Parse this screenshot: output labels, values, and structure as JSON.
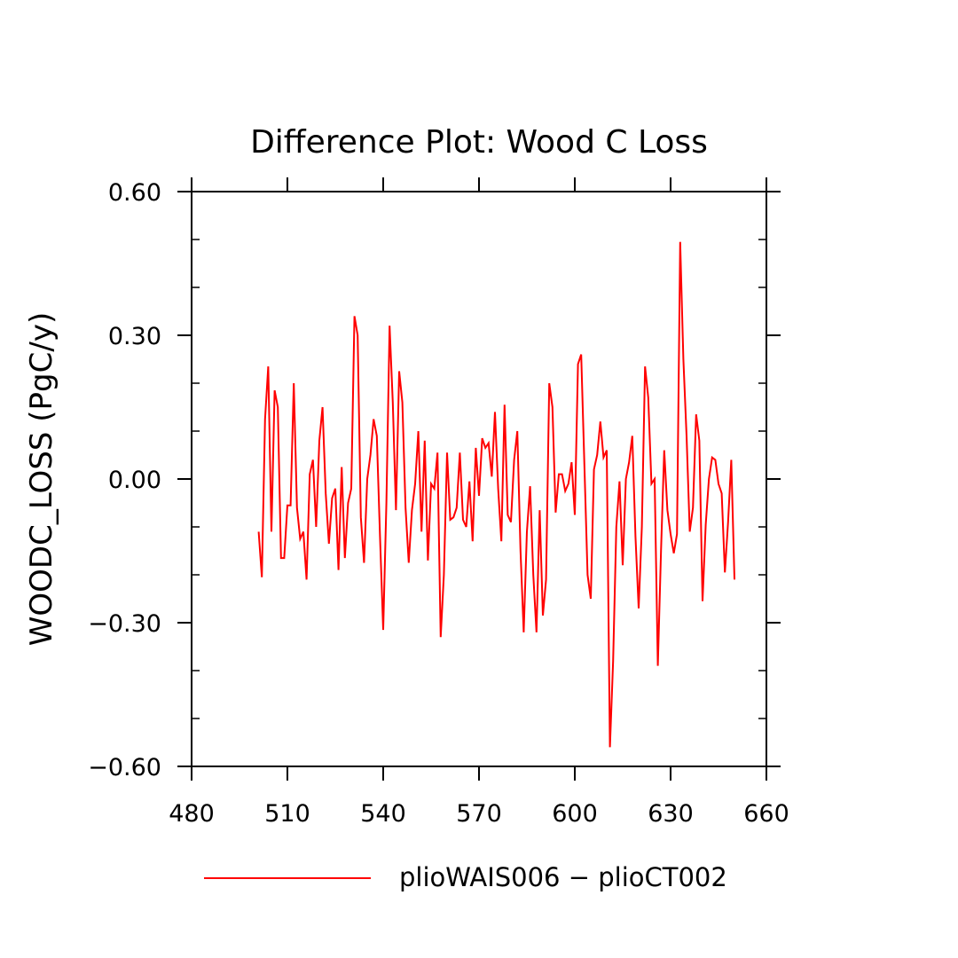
{
  "chart_data": {
    "type": "line",
    "title": "Difference Plot: Wood C Loss",
    "xlabel": "",
    "ylabel": "WOODC_LOSS  (PgC/y)",
    "xlim": [
      480,
      660
    ],
    "ylim": [
      -0.6,
      0.6
    ],
    "x_ticks": [
      480,
      510,
      540,
      570,
      600,
      630,
      660
    ],
    "x_tick_labels": [
      "480",
      "510",
      "540",
      "570",
      "600",
      "630",
      "660"
    ],
    "y_ticks": [
      0.6,
      0.3,
      0.0,
      -0.3,
      -0.6
    ],
    "y_tick_labels": [
      "0.60",
      "0.30",
      "0.00",
      "−0.30",
      "−0.60"
    ],
    "grid": false,
    "legend_position": "bottom",
    "series": [
      {
        "name": "plioWAIS006 − plioCT002",
        "color": "#ff0000",
        "x": [
          501,
          502,
          503,
          504,
          505,
          506,
          507,
          508,
          509,
          510,
          511,
          512,
          513,
          514,
          515,
          516,
          517,
          518,
          519,
          520,
          521,
          522,
          523,
          524,
          525,
          526,
          527,
          528,
          529,
          530,
          531,
          532,
          533,
          534,
          535,
          536,
          537,
          538,
          539,
          540,
          541,
          542,
          543,
          544,
          545,
          546,
          547,
          548,
          549,
          550,
          551,
          552,
          553,
          554,
          555,
          556,
          557,
          558,
          559,
          560,
          561,
          562,
          563,
          564,
          565,
          566,
          567,
          568,
          569,
          570,
          571,
          572,
          573,
          574,
          575,
          576,
          577,
          578,
          579,
          580,
          581,
          582,
          583,
          584,
          585,
          586,
          587,
          588,
          589,
          590,
          591,
          592,
          593,
          594,
          595,
          596,
          597,
          598,
          599,
          600,
          601,
          602,
          603,
          604,
          605,
          606,
          607,
          608,
          609,
          610,
          611,
          612,
          613,
          614,
          615,
          616,
          617,
          618,
          619,
          620,
          621,
          622,
          623,
          624,
          625,
          626,
          627,
          628,
          629,
          630,
          631,
          632,
          633,
          634,
          635,
          636,
          637,
          638,
          639,
          640,
          641,
          642,
          643,
          644,
          645,
          646,
          647,
          648,
          649,
          650
        ],
        "values": [
          -0.11,
          -0.205,
          0.125,
          0.235,
          -0.11,
          0.185,
          0.15,
          -0.165,
          -0.165,
          -0.055,
          -0.055,
          0.2,
          -0.06,
          -0.125,
          -0.11,
          -0.21,
          0.01,
          0.04,
          -0.1,
          0.08,
          0.15,
          -0.03,
          -0.135,
          -0.04,
          -0.02,
          -0.19,
          0.025,
          -0.165,
          -0.05,
          -0.02,
          0.34,
          0.3,
          -0.08,
          -0.175,
          0.0,
          0.05,
          0.125,
          0.09,
          -0.12,
          -0.315,
          -0.05,
          0.32,
          0.16,
          -0.065,
          0.225,
          0.16,
          -0.06,
          -0.175,
          -0.065,
          -0.01,
          0.1,
          -0.11,
          0.08,
          -0.17,
          -0.01,
          -0.02,
          0.055,
          -0.33,
          -0.2,
          0.055,
          -0.085,
          -0.08,
          -0.06,
          0.055,
          -0.085,
          -0.1,
          -0.005,
          -0.13,
          0.065,
          -0.035,
          0.085,
          0.065,
          0.075,
          0.005,
          0.14,
          -0.02,
          -0.13,
          0.155,
          -0.075,
          -0.09,
          0.04,
          0.1,
          -0.15,
          -0.32,
          -0.11,
          -0.015,
          -0.2,
          -0.32,
          -0.065,
          -0.285,
          -0.21,
          0.2,
          0.15,
          -0.07,
          0.01,
          0.01,
          -0.025,
          -0.01,
          0.035,
          -0.075,
          0.24,
          0.26,
          0.03,
          -0.2,
          -0.25,
          0.02,
          0.05,
          0.12,
          0.045,
          0.06,
          -0.56,
          -0.38,
          -0.1,
          -0.005,
          -0.18,
          0.0,
          0.035,
          0.09,
          -0.12,
          -0.27,
          -0.1,
          0.235,
          0.17,
          -0.01,
          0.0,
          -0.39,
          -0.15,
          0.06,
          -0.065,
          -0.115,
          -0.155,
          -0.115,
          0.495,
          0.25,
          0.09,
          -0.11,
          -0.06,
          0.135,
          0.08,
          -0.255,
          -0.095,
          0.0,
          0.045,
          0.04,
          -0.01,
          -0.03,
          -0.195,
          -0.09,
          0.04,
          -0.21
        ]
      }
    ]
  }
}
